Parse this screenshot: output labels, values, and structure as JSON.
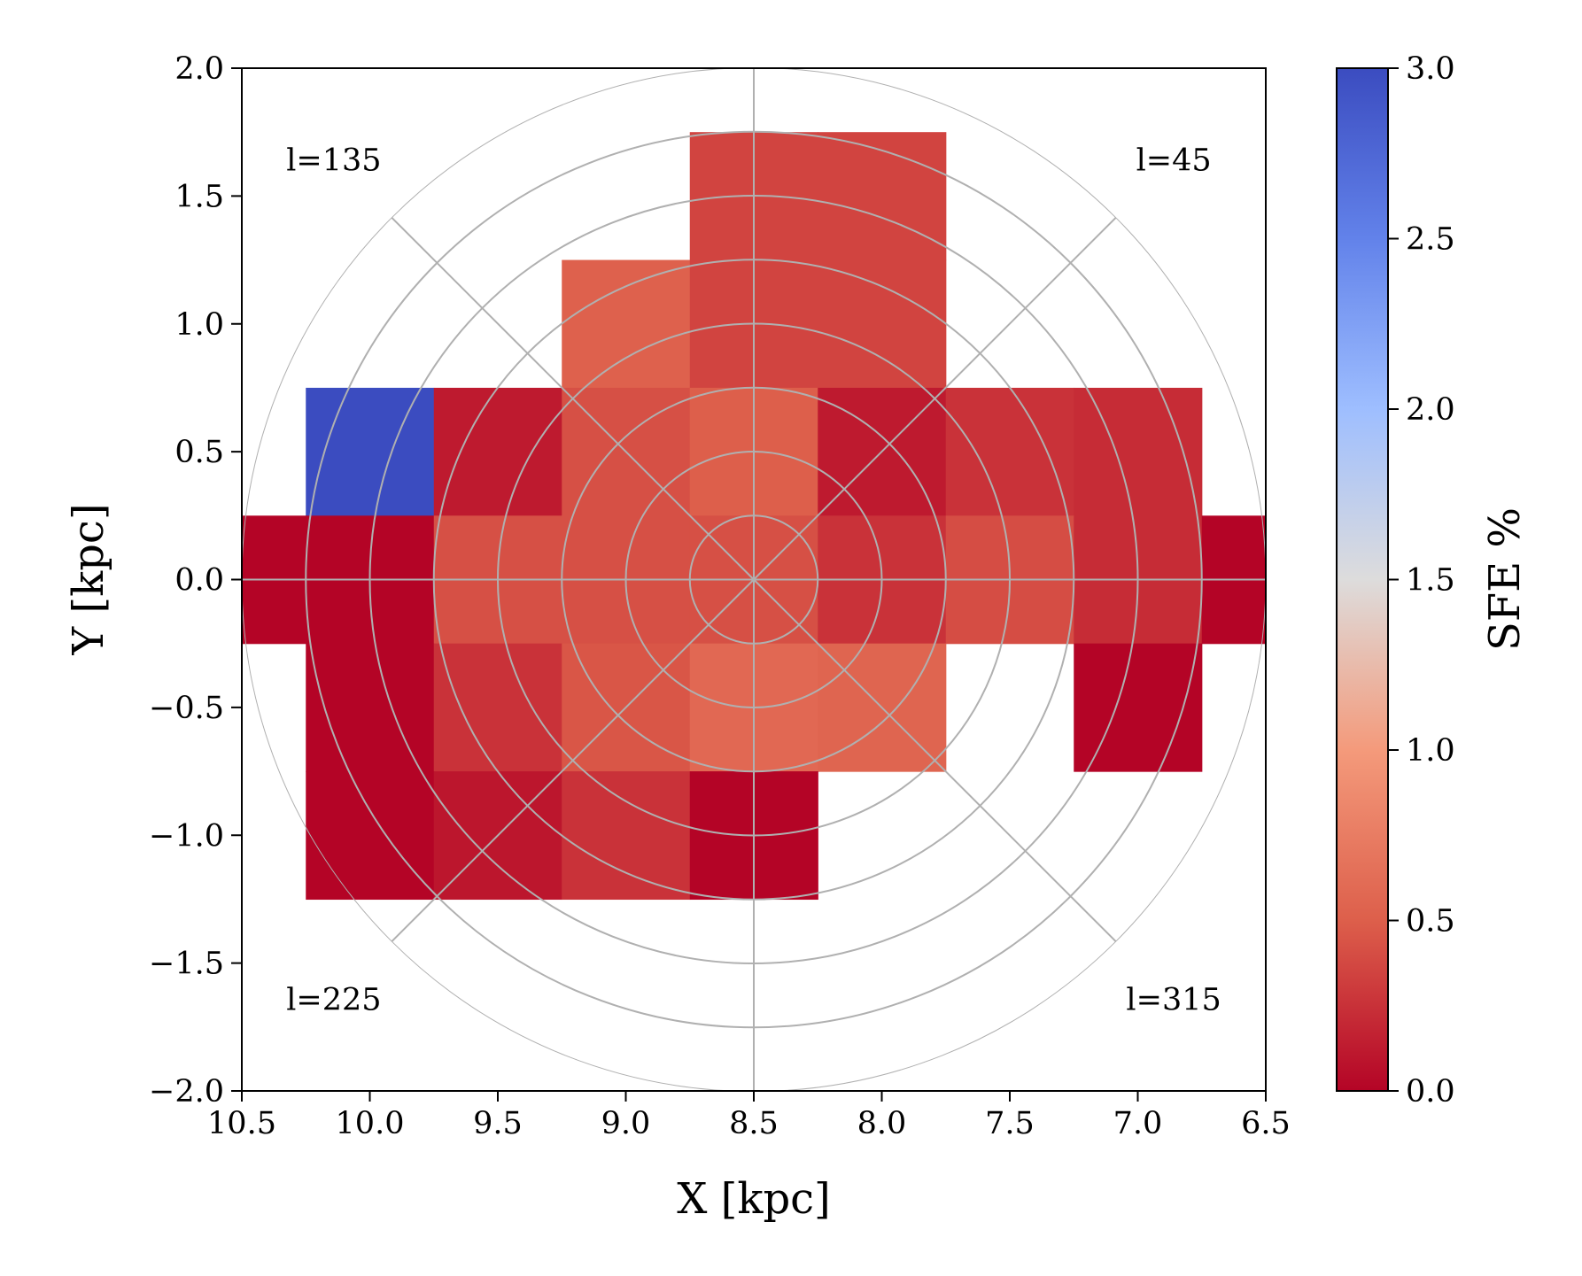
{
  "chart_data": {
    "type": "heatmap",
    "title": "",
    "xlabel": "X [kpc]",
    "ylabel": "Y [kpc]",
    "xlim": [
      10.5,
      6.5
    ],
    "ylim": [
      -2.0,
      2.0
    ],
    "x_ticks": [
      "10.5",
      "10.0",
      "9.5",
      "9.0",
      "8.5",
      "8.0",
      "7.5",
      "7.0",
      "6.5"
    ],
    "y_ticks": [
      "−2.0",
      "−1.5",
      "−1.0",
      "−0.5",
      "0.0",
      "0.5",
      "1.0",
      "1.5",
      "2.0"
    ],
    "colorbar": {
      "label": "SFE %",
      "colormap": "coolwarm_r",
      "range": [
        0.0,
        3.0
      ],
      "ticks": [
        "0.0",
        "0.5",
        "1.0",
        "1.5",
        "2.0",
        "2.5",
        "3.0"
      ],
      "stops": [
        "#b40426",
        "#dd5f4b",
        "#f49a7b",
        "#dddcdc",
        "#9ebeff",
        "#6282ea",
        "#3b4cc0"
      ]
    },
    "bin_size_kpc": 0.5,
    "cells": [
      {
        "x": 8.5,
        "y": 1.5,
        "value": 0.35
      },
      {
        "x": 8.0,
        "y": 1.5,
        "value": 0.35
      },
      {
        "x": 9.0,
        "y": 1.0,
        "value": 0.52
      },
      {
        "x": 8.5,
        "y": 1.0,
        "value": 0.35
      },
      {
        "x": 8.0,
        "y": 1.0,
        "value": 0.35
      },
      {
        "x": 10.0,
        "y": 0.5,
        "value": 3.0
      },
      {
        "x": 9.5,
        "y": 0.5,
        "value": 0.12
      },
      {
        "x": 9.0,
        "y": 0.5,
        "value": 0.42
      },
      {
        "x": 8.5,
        "y": 0.5,
        "value": 0.5
      },
      {
        "x": 8.0,
        "y": 0.5,
        "value": 0.12
      },
      {
        "x": 7.5,
        "y": 0.5,
        "value": 0.25
      },
      {
        "x": 7.0,
        "y": 0.5,
        "value": 0.22
      },
      {
        "x": 10.5,
        "y": 0.0,
        "value": 0.0
      },
      {
        "x": 10.0,
        "y": 0.0,
        "value": 0.0
      },
      {
        "x": 9.5,
        "y": 0.0,
        "value": 0.42
      },
      {
        "x": 9.0,
        "y": 0.0,
        "value": 0.42
      },
      {
        "x": 8.5,
        "y": 0.0,
        "value": 0.42
      },
      {
        "x": 8.0,
        "y": 0.0,
        "value": 0.25
      },
      {
        "x": 7.5,
        "y": 0.0,
        "value": 0.4
      },
      {
        "x": 7.0,
        "y": 0.0,
        "value": 0.22
      },
      {
        "x": 6.5,
        "y": 0.0,
        "value": 0.0
      },
      {
        "x": 10.0,
        "y": -0.5,
        "value": 0.0
      },
      {
        "x": 9.5,
        "y": -0.5,
        "value": 0.25
      },
      {
        "x": 9.0,
        "y": -0.5,
        "value": 0.45
      },
      {
        "x": 8.5,
        "y": -0.5,
        "value": 0.58
      },
      {
        "x": 8.0,
        "y": -0.5,
        "value": 0.55
      },
      {
        "x": 7.0,
        "y": -0.5,
        "value": 0.0
      },
      {
        "x": 10.0,
        "y": -1.0,
        "value": 0.0
      },
      {
        "x": 9.5,
        "y": -1.0,
        "value": 0.1
      },
      {
        "x": 9.0,
        "y": -1.0,
        "value": 0.25
      },
      {
        "x": 8.5,
        "y": -1.0,
        "value": 0.0
      }
    ],
    "overlay": {
      "center": [
        8.5,
        0.0
      ],
      "ring_radii_kpc": [
        0.25,
        0.5,
        0.75,
        1.0,
        1.25,
        1.5,
        1.75,
        2.0
      ],
      "spoke_angles_deg": [
        0,
        45,
        90,
        135,
        180,
        225,
        270,
        315
      ],
      "color": "#b0b0b0"
    },
    "annotations": [
      {
        "text": "l=135",
        "angle_deg": 135
      },
      {
        "text": "l=45",
        "angle_deg": 45
      },
      {
        "text": "l=225",
        "angle_deg": 225
      },
      {
        "text": "l=315",
        "angle_deg": 315
      }
    ]
  }
}
